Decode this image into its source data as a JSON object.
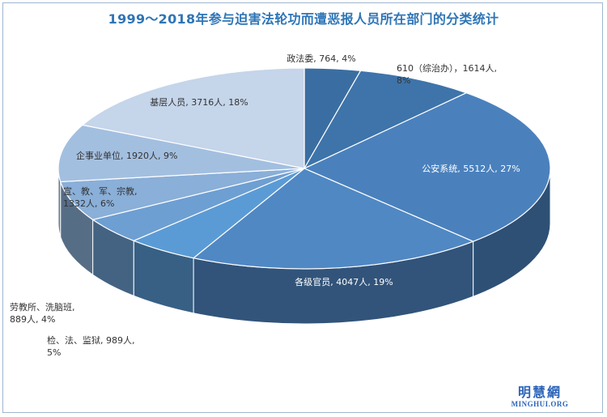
{
  "chart_data": {
    "type": "pie",
    "title": "1999～2018年参与迫害法轮功而遭恶报人员所在部门的分类统计",
    "slices": [
      {
        "label": [
          "政法委, 764, 4%"
        ],
        "value": 764,
        "percent": 4,
        "color": "#3a6ea2"
      },
      {
        "label": [
          "610（综治办），1614人,",
          "8%"
        ],
        "value": 1614,
        "percent": 8,
        "color": "#3e74aa"
      },
      {
        "label": [
          "公安系统, 5512人, 27%"
        ],
        "value": 5512,
        "percent": 27,
        "color": "#4a81bd"
      },
      {
        "label": [
          "各级官员, 4047人, 19%"
        ],
        "value": 4047,
        "percent": 19,
        "color": "#5088c4"
      },
      {
        "label": [
          "检、法、监狱, 989人,",
          "5%"
        ],
        "value": 989,
        "percent": 5,
        "color": "#5b9bd5"
      },
      {
        "label": [
          "劳教所、洗脑班,",
          "889人, 4%"
        ],
        "value": 889,
        "percent": 4,
        "color": "#6e9fd2"
      },
      {
        "label": [
          "宣、教、军、宗教,",
          "1332人, 6%"
        ],
        "value": 1332,
        "percent": 6,
        "color": "#8aafd8"
      },
      {
        "label": [
          "企事业单位, 1920人, 9%"
        ],
        "value": 1920,
        "percent": 9,
        "color": "#a3bfe0"
      },
      {
        "label": [
          "基层人员, 3716人, 18%"
        ],
        "value": 3716,
        "percent": 18,
        "color": "#c5d5ea"
      }
    ]
  },
  "logo": {
    "cn": "明慧網",
    "en": "MINGHUI.ORG"
  }
}
